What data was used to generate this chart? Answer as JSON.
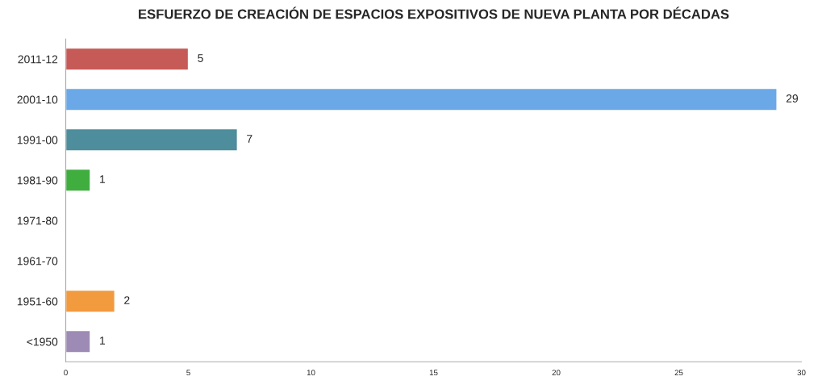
{
  "chart_data": {
    "type": "bar",
    "orientation": "horizontal",
    "title": "ESFUERZO DE CREACIÓN DE ESPACIOS EXPOSITIVOS DE NUEVA PLANTA POR DÉCADAS",
    "categories": [
      "2011-12",
      "2001-10",
      "1991-00",
      "1981-90",
      "1971-80",
      "1961-70",
      "1951-60",
      "<1950"
    ],
    "values": [
      5,
      29,
      7,
      1,
      0,
      0,
      2,
      1
    ],
    "colors": [
      "#c65a57",
      "#6aa8e8",
      "#4e8d9b",
      "#3fae3f",
      null,
      null,
      "#f29a3e",
      "#9d8bb5"
    ],
    "value_labels": [
      "5",
      "29",
      "7",
      "1",
      null,
      null,
      "2",
      "1"
    ],
    "xlim": [
      0,
      30
    ],
    "xticks": [
      0,
      5,
      10,
      15,
      20,
      25,
      30
    ],
    "grid": false
  }
}
